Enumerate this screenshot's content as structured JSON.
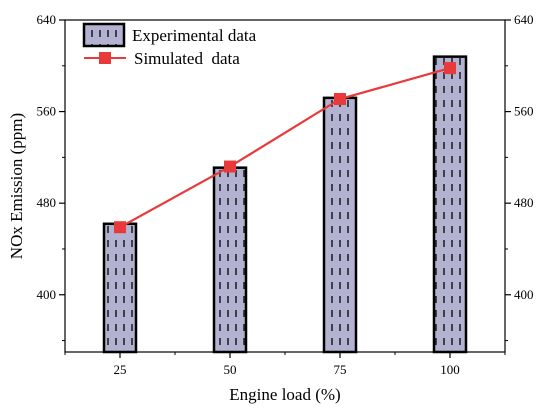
{
  "chart_data": {
    "type": "bar",
    "categories": [
      "25",
      "50",
      "75",
      "100"
    ],
    "xlabel": "Engine load (%)",
    "ylabel": "NOx Emission (ppm)",
    "ylim": [
      350,
      640
    ],
    "yticks": [
      400,
      480,
      560,
      640
    ],
    "right_axis_ticks": true,
    "series": [
      {
        "name": "Experimental data",
        "type": "bar",
        "values": [
          462,
          511,
          572,
          608
        ],
        "fill": "#b3b3d1",
        "pattern": "vertical-dashes",
        "edge": "#000000"
      },
      {
        "name": "Simulated  data",
        "type": "line",
        "values": [
          459,
          512,
          571,
          598
        ],
        "color": "#e83a3a",
        "marker": "square"
      }
    ],
    "legend_position": "top-left",
    "grid": false
  }
}
